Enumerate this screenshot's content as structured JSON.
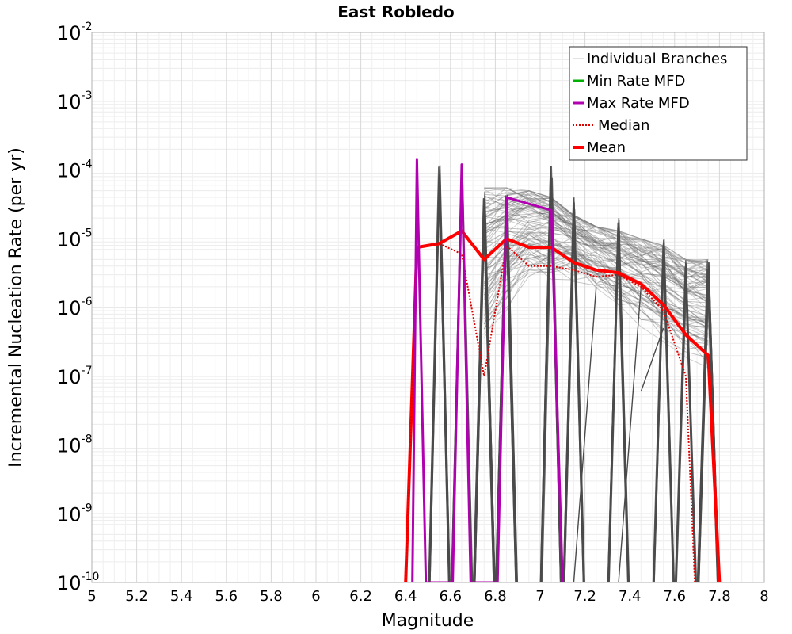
{
  "chart_data": {
    "type": "line",
    "title": "East Robledo",
    "xlabel": "Magnitude",
    "ylabel": "Incremental Nucleation Rate (per yr)",
    "xlim": [
      5,
      8
    ],
    "ylim": [
      1e-10,
      0.01
    ],
    "y_scale": "log",
    "grid": true,
    "legend_position": "top-right",
    "x_ticks": [
      "5",
      "5.2",
      "5.4",
      "5.6",
      "5.8",
      "6",
      "6.2",
      "6.4",
      "6.6",
      "6.8",
      "7",
      "7.2",
      "7.4",
      "7.6",
      "7.8",
      "8"
    ],
    "y_ticks": [
      {
        "base": "10",
        "exp": "-2"
      },
      {
        "base": "10",
        "exp": "-3"
      },
      {
        "base": "10",
        "exp": "-4"
      },
      {
        "base": "10",
        "exp": "-5"
      },
      {
        "base": "10",
        "exp": "-6"
      },
      {
        "base": "10",
        "exp": "-7"
      },
      {
        "base": "10",
        "exp": "-8"
      },
      {
        "base": "10",
        "exp": "-9"
      },
      {
        "base": "10",
        "exp": "-10"
      }
    ],
    "legend": [
      {
        "label": "Individual Branches",
        "color": "#c8c8c8",
        "style": "thin"
      },
      {
        "label": "Min Rate MFD",
        "color": "#00b000",
        "style": "solid"
      },
      {
        "label": "Max Rate MFD",
        "color": "#b000b0",
        "style": "solid"
      },
      {
        "label": "Median",
        "color": "#e00000",
        "style": "dotted"
      },
      {
        "label": "Mean",
        "color": "#ff0000",
        "style": "thick"
      }
    ],
    "series": [
      {
        "name": "Mean",
        "color": "#ff0000",
        "x": [
          6.4,
          6.45,
          6.55,
          6.65,
          6.75,
          6.85,
          6.95,
          7.05,
          7.15,
          7.25,
          7.35,
          7.45,
          7.55,
          7.65,
          7.75,
          7.8
        ],
        "y": [
          1e-10,
          7.5e-06,
          8.5e-06,
          1.3e-05,
          5e-06,
          1e-05,
          7.5e-06,
          7.5e-06,
          4.5e-06,
          3.5e-06,
          3.2e-06,
          2.2e-06,
          1.1e-06,
          4e-07,
          2e-07,
          1e-10
        ]
      },
      {
        "name": "Median",
        "color": "#e00000",
        "x": [
          6.4,
          6.45,
          6.55,
          6.65,
          6.75,
          6.85,
          6.95,
          7.05,
          7.15,
          7.25,
          7.35,
          7.45,
          7.55,
          7.65,
          7.69
        ],
        "y": [
          1e-10,
          7.5e-06,
          8.5e-06,
          6e-06,
          1e-07,
          8e-06,
          4e-06,
          4e-06,
          3.5e-06,
          2.8e-06,
          3e-06,
          2e-06,
          9e-07,
          1e-07,
          1e-10
        ]
      },
      {
        "name": "Max Rate MFD",
        "color": "#b000b0",
        "x": [
          6.43,
          6.45,
          6.49,
          6.61,
          6.65,
          6.69,
          6.81,
          6.85,
          7.05,
          7.1
        ],
        "y": [
          1e-10,
          0.00014,
          1e-10,
          1e-10,
          0.00012,
          1e-10,
          1e-10,
          4e-05,
          2.6e-05,
          1e-10
        ]
      }
    ],
    "branch_band": {
      "x": [
        6.75,
        6.85,
        6.95,
        7.05,
        7.15,
        7.25,
        7.35,
        7.45,
        7.55,
        7.65,
        7.75
      ],
      "upper": [
        5.5e-05,
        5.5e-05,
        5e-05,
        4e-05,
        2.2e-05,
        1.5e-05,
        1.3e-05,
        1e-05,
        8e-06,
        5e-06,
        5e-06
      ],
      "lower": [
        5e-08,
        3e-07,
        1e-06,
        1.2e-06,
        1.5e-06,
        8e-07,
        5e-07,
        3e-07,
        1.5e-07,
        8e-08,
        5e-08
      ]
    },
    "branch_spikes": [
      {
        "x": 6.55,
        "y": 0.00012
      },
      {
        "x": 6.65,
        "y": 0.00012
      },
      {
        "x": 6.75,
        "y": 5e-05
      },
      {
        "x": 6.85,
        "y": 5e-05
      },
      {
        "x": 7.05,
        "y": 0.00012
      },
      {
        "x": 7.15,
        "y": 4e-05
      },
      {
        "x": 7.35,
        "y": 2e-05
      },
      {
        "x": 7.55,
        "y": 1e-05
      },
      {
        "x": 7.65,
        "y": 5e-06
      },
      {
        "x": 7.75,
        "y": 5e-06
      }
    ]
  }
}
